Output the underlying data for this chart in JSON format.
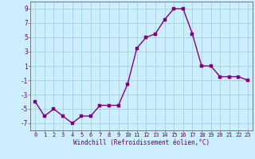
{
  "x": [
    0,
    1,
    2,
    3,
    4,
    5,
    6,
    7,
    8,
    9,
    10,
    11,
    12,
    13,
    14,
    15,
    16,
    17,
    18,
    19,
    20,
    21,
    22,
    23
  ],
  "y": [
    -4,
    -6,
    -5,
    -6,
    -7,
    -6,
    -6,
    -4.5,
    -4.5,
    -4.5,
    -1.5,
    3.5,
    5,
    5.5,
    7.5,
    9,
    9,
    5.5,
    1,
    1,
    -0.5,
    -0.5,
    -0.5,
    -1
  ],
  "line_color": "#800080",
  "marker_color": "#800080",
  "bg_color": "#cceeff",
  "grid_color": "#99cccc",
  "xlabel": "Windchill (Refroidissement éolien,°C)",
  "ylim": [
    -8,
    10
  ],
  "xlim": [
    -0.5,
    23.5
  ],
  "yticks": [
    -7,
    -5,
    -3,
    -1,
    1,
    3,
    5,
    7,
    9
  ],
  "xticks": [
    0,
    1,
    2,
    3,
    4,
    5,
    6,
    7,
    8,
    9,
    10,
    11,
    12,
    13,
    14,
    15,
    16,
    17,
    18,
    19,
    20,
    21,
    22,
    23
  ],
  "xtick_labels": [
    "0",
    "1",
    "2",
    "3",
    "4",
    "5",
    "6",
    "7",
    "8",
    "9",
    "10",
    "11",
    "12",
    "13",
    "14",
    "15",
    "16",
    "17",
    "18",
    "19",
    "20",
    "21",
    "22",
    "23"
  ],
  "line_width": 1.0,
  "marker_size": 2.5,
  "tick_color": "#660066",
  "label_color": "#660066",
  "spine_color": "#666666"
}
